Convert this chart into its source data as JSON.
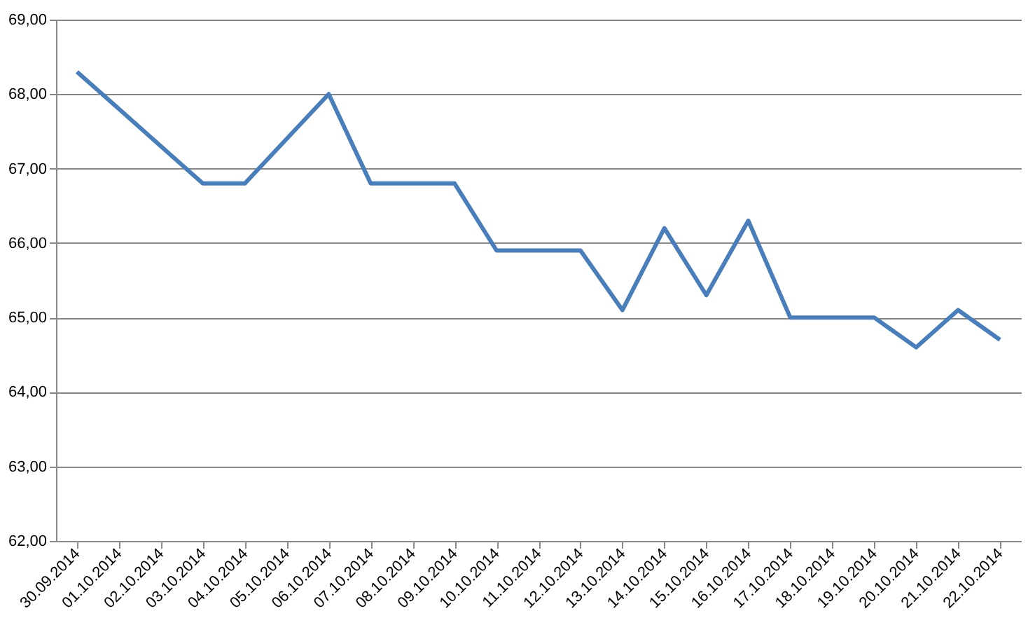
{
  "chart_data": {
    "type": "line",
    "categories": [
      "30.09.2014",
      "01.10.2014",
      "02.10.2014",
      "03.10.2014",
      "04.10.2014",
      "05.10.2014",
      "06.10.2014",
      "07.10.2014",
      "08.10.2014",
      "09.10.2014",
      "10.10.2014",
      "11.10.2014",
      "12.10.2014",
      "13.10.2014",
      "14.10.2014",
      "15.10.2014",
      "16.10.2014",
      "17.10.2014",
      "18.10.2014",
      "19.10.2014",
      "20.10.2014",
      "21.10.2014",
      "22.10.2014"
    ],
    "series": [
      {
        "color": "#4a7ebb",
        "values": [
          68.3,
          67.8,
          67.3,
          66.8,
          66.8,
          67.4,
          68.0,
          66.8,
          66.8,
          66.8,
          65.9,
          65.9,
          65.9,
          65.1,
          66.2,
          65.3,
          66.3,
          65.0,
          65.0,
          65.0,
          64.6,
          65.1,
          64.7
        ]
      }
    ],
    "ylim": [
      62,
      69
    ],
    "yticks": [
      {
        "value": 62,
        "label": "62,00"
      },
      {
        "value": 63,
        "label": "63,00"
      },
      {
        "value": 64,
        "label": "64,00"
      },
      {
        "value": 65,
        "label": "65,00"
      },
      {
        "value": 66,
        "label": "66,00"
      },
      {
        "value": 67,
        "label": "67,00"
      },
      {
        "value": 68,
        "label": "68,00"
      },
      {
        "value": 69,
        "label": "69,00"
      }
    ],
    "grid": "y",
    "legend": false,
    "marker": "none",
    "line_style": "solid"
  }
}
